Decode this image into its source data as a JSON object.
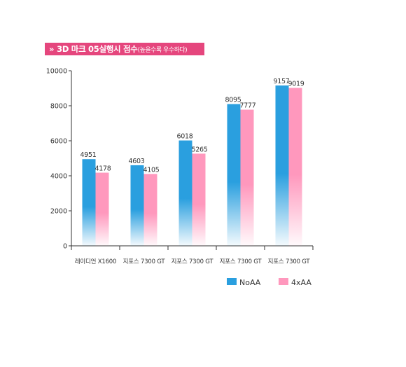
{
  "header": {
    "chevron": "»",
    "title": "3D 마크 05실행시 점수",
    "subtitle": "(높을수록 우수하다)"
  },
  "colors": {
    "title_bg": "#e5467d",
    "noaa": "#2a9fdf",
    "x4aa": "#ff98bd",
    "axis": "#333333"
  },
  "chart_data": {
    "type": "bar",
    "title": "3D 마크 05실행시 점수(높을수록 우수하다)",
    "categories": [
      "레이디언 X1600",
      "지포스 7300 GT",
      "지포스 7300 GT",
      "지포스 7300 GT",
      "지포스 7300 GT"
    ],
    "series": [
      {
        "name": "NoAA",
        "values": [
          4951,
          4603,
          6018,
          8095,
          9157
        ]
      },
      {
        "name": "4xAA",
        "values": [
          4178,
          4105,
          5265,
          7777,
          9019
        ]
      }
    ],
    "ylim": [
      0,
      10000
    ],
    "yticks": [
      0,
      2000,
      4000,
      6000,
      8000,
      10000
    ],
    "xlabel": "",
    "ylabel": "",
    "grid": false,
    "legend": "bottom-right"
  }
}
